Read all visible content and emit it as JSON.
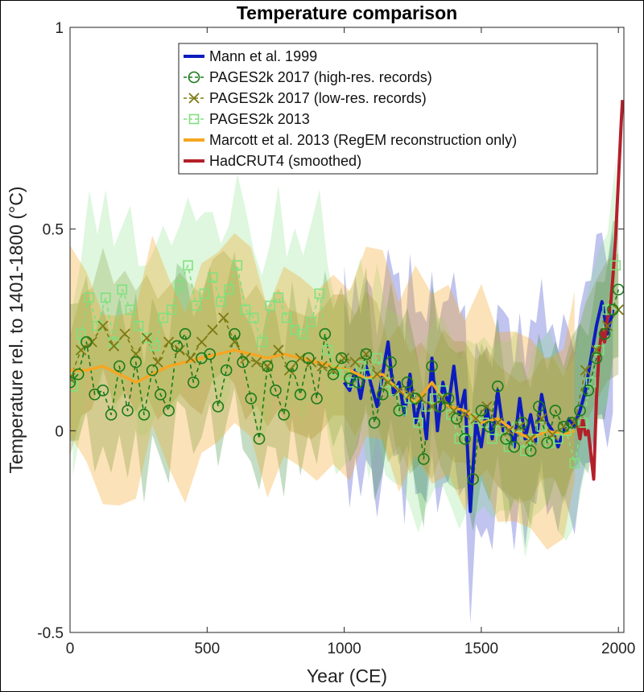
{
  "chart_data": {
    "type": "line",
    "title": "Temperature comparison",
    "xlabel": "Year (CE)",
    "ylabel": "Temperature rel. to 1401-1800 (°C)",
    "xlim": [
      0,
      2020
    ],
    "ylim": [
      -0.5,
      1
    ],
    "xticks": [
      0,
      500,
      1000,
      1500,
      2000
    ],
    "xtick_labels": [
      "0",
      "500",
      "1000",
      "1500",
      "2000"
    ],
    "yticks": [
      -0.5,
      0,
      0.5,
      1
    ],
    "ytick_labels": [
      "-0.5",
      "0",
      "0.5",
      "1"
    ],
    "legend_position": "top-center",
    "colors": {
      "mann": "#0c1cbf",
      "pages2017_high": "#1a7a1a",
      "pages2017_low": "#7d7a14",
      "pages2013": "#7fe07f",
      "marcott": "#f5a623",
      "hadcrut": "#b3202a"
    },
    "series": [
      {
        "name": "Mann et al. 1999",
        "key": "mann",
        "marker": "none",
        "x": [
          1000,
          1020,
          1040,
          1060,
          1080,
          1100,
          1120,
          1140,
          1160,
          1180,
          1200,
          1220,
          1240,
          1260,
          1280,
          1300,
          1320,
          1340,
          1360,
          1380,
          1400,
          1420,
          1440,
          1460,
          1480,
          1500,
          1520,
          1540,
          1560,
          1580,
          1600,
          1620,
          1640,
          1660,
          1680,
          1700,
          1720,
          1740,
          1760,
          1780,
          1800,
          1820,
          1840,
          1860,
          1880,
          1900,
          1920,
          1940,
          1960,
          1980
        ],
        "y": [
          0.12,
          0.1,
          0.15,
          0.08,
          0.16,
          0.11,
          0.06,
          0.14,
          0.22,
          0.09,
          0.12,
          0.04,
          0.14,
          0.02,
          0.08,
          -0.02,
          0.18,
          0.0,
          0.12,
          0.06,
          0.16,
          0.04,
          0.1,
          -0.2,
          0.02,
          -0.04,
          0.06,
          -0.02,
          0.1,
          0.0,
          0.02,
          -0.04,
          0.08,
          -0.02,
          0.04,
          -0.03,
          0.09,
          0.02,
          0.0,
          -0.04,
          0.0,
          0.03,
          0.01,
          0.05,
          0.1,
          0.18,
          0.26,
          0.32,
          0.24,
          0.3
        ],
        "band": [
          0.15,
          0.3
        ]
      },
      {
        "name": "PAGES2k 2017 (high-res. records)",
        "key": "pages2017_high",
        "marker": "circle",
        "x": [
          0,
          30,
          60,
          90,
          120,
          150,
          180,
          210,
          240,
          270,
          300,
          330,
          360,
          390,
          420,
          450,
          480,
          510,
          540,
          570,
          600,
          630,
          660,
          690,
          720,
          750,
          780,
          810,
          840,
          870,
          900,
          930,
          960,
          990,
          1020,
          1050,
          1080,
          1110,
          1140,
          1170,
          1200,
          1230,
          1260,
          1290,
          1320,
          1350,
          1380,
          1410,
          1440,
          1470,
          1500,
          1530,
          1560,
          1590,
          1620,
          1650,
          1680,
          1710,
          1740,
          1770,
          1800,
          1830,
          1860,
          1890,
          1920,
          1950,
          1980,
          2000
        ],
        "y": [
          0.12,
          0.14,
          0.22,
          0.09,
          0.1,
          0.04,
          0.16,
          0.05,
          0.17,
          0.04,
          0.15,
          0.09,
          0.05,
          0.21,
          0.24,
          0.12,
          0.18,
          0.19,
          0.06,
          0.15,
          0.24,
          0.17,
          0.08,
          -0.02,
          0.16,
          0.1,
          0.04,
          0.16,
          0.09,
          0.18,
          0.08,
          0.24,
          0.14,
          0.18,
          0.13,
          0.12,
          0.19,
          0.02,
          0.09,
          0.17,
          0.05,
          0.12,
          0.08,
          -0.07,
          0.16,
          0.06,
          0.08,
          0.03,
          -0.02,
          -0.12,
          0.05,
          0.01,
          0.11,
          -0.02,
          -0.04,
          0.02,
          -0.05,
          0.06,
          -0.03,
          0.05,
          0.01,
          0.02,
          0.05,
          0.1,
          0.18,
          0.24,
          0.3,
          0.35
        ],
        "band": [
          0.12,
          0.22
        ]
      },
      {
        "name": "PAGES2k 2017 (low-res. records)",
        "key": "pages2017_low",
        "marker": "x",
        "x": [
          0,
          40,
          80,
          120,
          160,
          200,
          240,
          280,
          320,
          360,
          400,
          440,
          480,
          520,
          560,
          600,
          640,
          680,
          720,
          760,
          800,
          840,
          880,
          920,
          960,
          1000,
          1040,
          1080,
          1120,
          1160,
          1200,
          1240,
          1280,
          1320,
          1360,
          1400,
          1440,
          1480,
          1520,
          1560,
          1600,
          1640,
          1680,
          1720,
          1760,
          1800,
          1840,
          1880,
          1920,
          1960,
          2000
        ],
        "y": [
          0.13,
          0.2,
          0.22,
          0.26,
          0.21,
          0.24,
          0.19,
          0.23,
          0.17,
          0.22,
          0.2,
          0.18,
          0.22,
          0.25,
          0.28,
          0.22,
          0.18,
          0.17,
          0.16,
          0.2,
          0.15,
          0.18,
          0.17,
          0.16,
          0.15,
          0.18,
          0.17,
          0.19,
          0.14,
          0.12,
          0.1,
          0.09,
          0.08,
          0.06,
          0.08,
          0.05,
          0.04,
          0.03,
          0.06,
          0.02,
          0.0,
          0.01,
          -0.02,
          0.03,
          -0.01,
          0.01,
          0.02,
          0.15,
          0.2,
          0.26,
          0.3
        ],
        "band": [
          0.1,
          0.2
        ]
      },
      {
        "name": "PAGES2k 2013",
        "key": "pages2013",
        "marker": "square",
        "x": [
          10,
          40,
          70,
          100,
          130,
          160,
          190,
          220,
          250,
          280,
          310,
          340,
          370,
          400,
          430,
          460,
          490,
          520,
          550,
          580,
          610,
          640,
          670,
          700,
          730,
          760,
          790,
          820,
          850,
          880,
          910,
          940,
          970,
          1000,
          1030,
          1060,
          1090,
          1120,
          1150,
          1180,
          1210,
          1240,
          1270,
          1300,
          1330,
          1360,
          1390,
          1420,
          1450,
          1480,
          1510,
          1540,
          1570,
          1600,
          1630,
          1660,
          1690,
          1720,
          1750,
          1780,
          1810,
          1840,
          1870,
          1900,
          1930,
          1960,
          1990
        ],
        "y": [
          0.11,
          0.24,
          0.33,
          0.26,
          0.33,
          0.22,
          0.35,
          0.3,
          0.26,
          0.23,
          0.21,
          0.28,
          0.3,
          0.36,
          0.41,
          0.31,
          0.34,
          0.38,
          0.32,
          0.35,
          0.41,
          0.3,
          0.28,
          0.22,
          0.31,
          0.33,
          0.28,
          0.25,
          0.24,
          0.27,
          0.34,
          0.2,
          0.15,
          0.14,
          0.12,
          0.16,
          0.14,
          0.18,
          0.12,
          0.1,
          0.05,
          0.08,
          0.02,
          0.06,
          0.08,
          0.1,
          0.04,
          -0.02,
          0.0,
          0.03,
          0.02,
          -0.02,
          0.0,
          -0.04,
          0.01,
          -0.05,
          -0.02,
          0.01,
          -0.03,
          -0.02,
          0.0,
          -0.08,
          0.02,
          0.12,
          0.2,
          0.3,
          0.41
        ],
        "band": [
          0.14,
          0.28
        ]
      },
      {
        "name": "Marcott et al. 2013 (RegEM reconstruction only)",
        "key": "marcott",
        "marker": "none",
        "x": [
          0,
          60,
          120,
          180,
          240,
          300,
          360,
          420,
          480,
          540,
          600,
          660,
          720,
          780,
          840,
          900,
          960,
          1020,
          1080,
          1140,
          1200,
          1260,
          1320,
          1380,
          1440,
          1500,
          1560,
          1620,
          1680,
          1740,
          1800,
          1840
        ],
        "y": [
          0.15,
          0.15,
          0.16,
          0.14,
          0.12,
          0.14,
          0.16,
          0.17,
          0.18,
          0.19,
          0.2,
          0.19,
          0.18,
          0.19,
          0.18,
          0.17,
          0.16,
          0.15,
          0.13,
          0.14,
          0.1,
          0.07,
          0.12,
          0.06,
          0.05,
          0.02,
          0.03,
          0.0,
          -0.02,
          0.0,
          -0.01,
          0.0
        ],
        "band": [
          0.12,
          0.35
        ]
      },
      {
        "name": "HadCRUT4 (smoothed)",
        "key": "hadcrut",
        "marker": "none",
        "x": [
          1850,
          1860,
          1870,
          1880,
          1890,
          1900,
          1910,
          1920,
          1930,
          1940,
          1950,
          1960,
          1970,
          1980,
          1990,
          2000,
          2010,
          2015
        ],
        "y": [
          0.02,
          -0.02,
          0.03,
          -0.01,
          0.0,
          -0.06,
          -0.12,
          0.08,
          0.2,
          0.25,
          0.22,
          0.28,
          0.3,
          0.38,
          0.48,
          0.62,
          0.76,
          0.82
        ]
      }
    ]
  }
}
